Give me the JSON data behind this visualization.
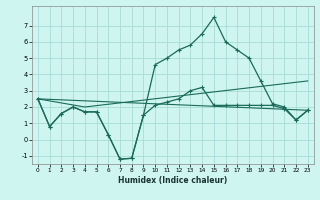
{
  "xlabel": "Humidex (Indice chaleur)",
  "bg_color": "#cef5f0",
  "grid_color": "#a8dcd8",
  "line_color": "#1a6b5a",
  "xlim": [
    -0.5,
    23.5
  ],
  "ylim": [
    -1.5,
    8.2
  ],
  "yticks": [
    -1,
    0,
    1,
    2,
    3,
    4,
    5,
    6,
    7
  ],
  "xticks": [
    0,
    1,
    2,
    3,
    4,
    5,
    6,
    7,
    8,
    9,
    10,
    11,
    12,
    13,
    14,
    15,
    16,
    17,
    18,
    19,
    20,
    21,
    22,
    23
  ],
  "line1_x": [
    0,
    1,
    2,
    3,
    4,
    5,
    6,
    7,
    8,
    9,
    10,
    11,
    12,
    13,
    14,
    15,
    16,
    17,
    18,
    19,
    20,
    21,
    22,
    23
  ],
  "line1_y": [
    2.5,
    0.8,
    1.6,
    2.0,
    1.7,
    1.7,
    0.3,
    -1.2,
    -1.15,
    1.5,
    4.6,
    5.0,
    5.5,
    5.8,
    6.5,
    7.5,
    6.0,
    5.5,
    5.0,
    3.6,
    2.2,
    2.0,
    1.2,
    1.8
  ],
  "line2_x": [
    0,
    1,
    2,
    3,
    4,
    5,
    6,
    7,
    8,
    9,
    10,
    11,
    12,
    13,
    14,
    15,
    16,
    17,
    18,
    19,
    20,
    21,
    22,
    23
  ],
  "line2_y": [
    2.5,
    0.8,
    1.6,
    2.0,
    1.7,
    1.7,
    0.3,
    -1.2,
    -1.15,
    1.5,
    2.1,
    2.3,
    2.5,
    3.0,
    3.2,
    2.1,
    2.1,
    2.1,
    2.1,
    2.1,
    2.1,
    1.9,
    1.2,
    1.8
  ],
  "line3_x": [
    0,
    4,
    23
  ],
  "line3_y": [
    2.5,
    2.0,
    3.6
  ],
  "line4_x": [
    0,
    23
  ],
  "line4_y": [
    2.5,
    1.8
  ]
}
